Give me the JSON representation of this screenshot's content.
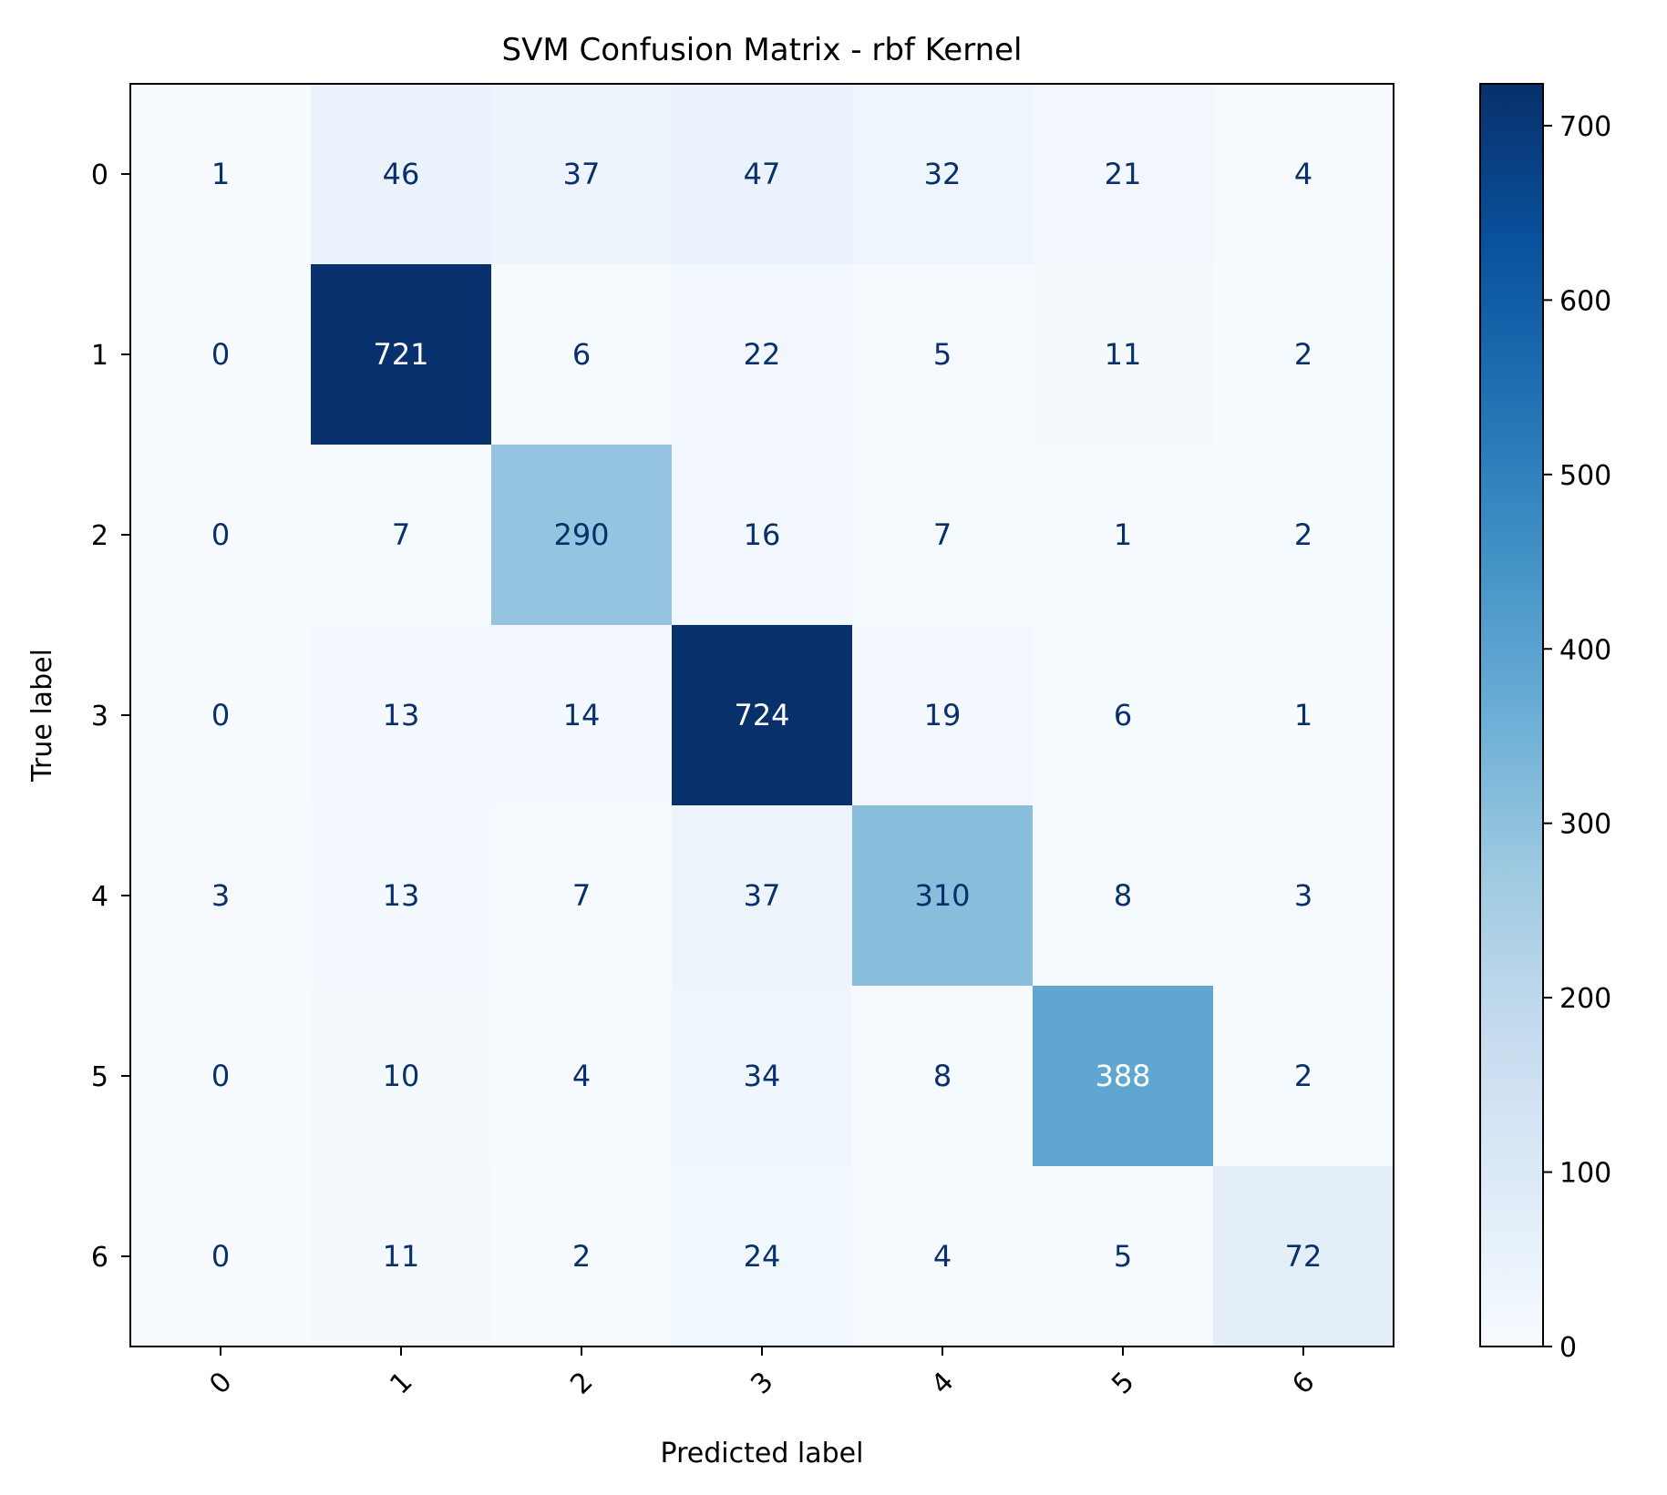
{
  "chart_data": {
    "type": "heatmap",
    "title": "SVM Confusion Matrix - rbf Kernel",
    "xlabel": "Predicted label",
    "ylabel": "True label",
    "x_categories": [
      "0",
      "1",
      "2",
      "3",
      "4",
      "5",
      "6"
    ],
    "y_categories": [
      "0",
      "1",
      "2",
      "3",
      "4",
      "5",
      "6"
    ],
    "values": [
      [
        1,
        46,
        37,
        47,
        32,
        21,
        4
      ],
      [
        0,
        721,
        6,
        22,
        5,
        11,
        2
      ],
      [
        0,
        7,
        290,
        16,
        7,
        1,
        2
      ],
      [
        0,
        13,
        14,
        724,
        19,
        6,
        1
      ],
      [
        3,
        13,
        7,
        37,
        310,
        8,
        3
      ],
      [
        0,
        10,
        4,
        34,
        8,
        388,
        2
      ],
      [
        0,
        11,
        2,
        24,
        4,
        5,
        72
      ]
    ],
    "colormap": "Blues",
    "color_range": [
      0,
      724
    ],
    "colorbar_ticks": [
      0,
      100,
      200,
      300,
      400,
      500,
      600,
      700
    ],
    "x_tick_rotation": "45 degrees",
    "grid": false,
    "colors": {
      "low": "#f7fbff",
      "high": "#08306b",
      "text_dark": "#08306b",
      "text_light": "#ffffff"
    }
  }
}
